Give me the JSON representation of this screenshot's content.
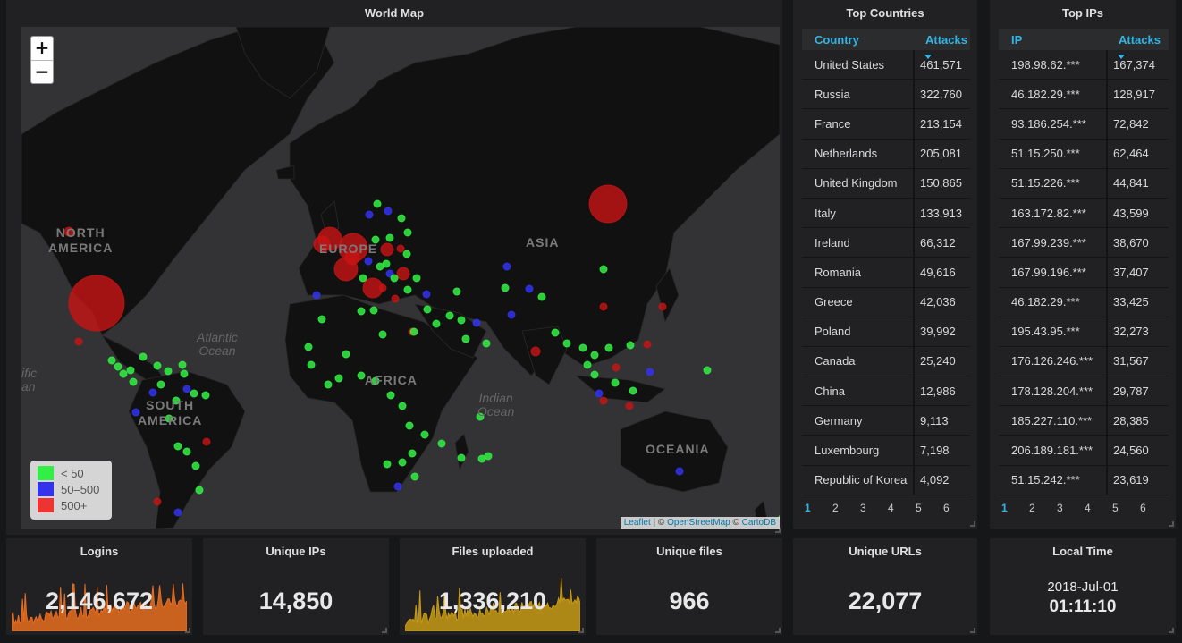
{
  "map_panel": {
    "title": "World Map",
    "zoom_in": "+",
    "zoom_out": "−",
    "labels": {
      "north_america": "NORTH\nAMERICA",
      "south_america": "SOUTH\nAMERICA",
      "europe": "EUROPE",
      "asia": "ASIA",
      "africa": "AFRICA",
      "oceania": "OCEANIA",
      "atlantic": "Atlantic\nOcean",
      "indian": "Indian\nOcean",
      "pacific_cut": "ific\nan"
    },
    "legend": [
      {
        "label": "< 50",
        "color": "#33ee44"
      },
      {
        "label": "50–500",
        "color": "#3333ee"
      },
      {
        "label": "500+",
        "color": "#ee3333"
      }
    ],
    "attribution": {
      "leaflet": "Leaflet",
      "sep1": " | © ",
      "osm": "OpenStreetMap",
      "sep2": " © ",
      "carto": "CartoDB"
    }
  },
  "countries_panel": {
    "title": "Top Countries",
    "col1": "Country",
    "col2": "Attacks",
    "rows": [
      {
        "name": "United States",
        "value": "461,571"
      },
      {
        "name": "Russia",
        "value": "322,760"
      },
      {
        "name": "France",
        "value": "213,154"
      },
      {
        "name": "Netherlands",
        "value": "205,081"
      },
      {
        "name": "United Kingdom",
        "value": "150,865"
      },
      {
        "name": "Italy",
        "value": "133,913"
      },
      {
        "name": "Ireland",
        "value": "66,312"
      },
      {
        "name": "Romania",
        "value": "49,616"
      },
      {
        "name": "Greece",
        "value": "42,036"
      },
      {
        "name": "Poland",
        "value": "39,992"
      },
      {
        "name": "Canada",
        "value": "25,240"
      },
      {
        "name": "China",
        "value": "12,986"
      },
      {
        "name": "Germany",
        "value": "9,113"
      },
      {
        "name": "Luxembourg",
        "value": "7,198"
      },
      {
        "name": "Republic of Korea",
        "value": "4,092"
      }
    ],
    "pages": [
      "1",
      "2",
      "3",
      "4",
      "5",
      "6"
    ]
  },
  "ips_panel": {
    "title": "Top IPs",
    "col1": "IP",
    "col2": "Attacks",
    "rows": [
      {
        "name": "198.98.62.***",
        "value": "167,374"
      },
      {
        "name": "46.182.29.***",
        "value": "128,917"
      },
      {
        "name": "93.186.254.***",
        "value": "72,842"
      },
      {
        "name": "51.15.250.***",
        "value": "62,464"
      },
      {
        "name": "51.15.226.***",
        "value": "44,841"
      },
      {
        "name": "163.172.82.***",
        "value": "43,599"
      },
      {
        "name": "167.99.239.***",
        "value": "38,670"
      },
      {
        "name": "167.99.196.***",
        "value": "37,407"
      },
      {
        "name": "46.182.29.***",
        "value": "33,425"
      },
      {
        "name": "195.43.95.***",
        "value": "32,273"
      },
      {
        "name": "176.126.246.***",
        "value": "31,567"
      },
      {
        "name": "178.128.204.***",
        "value": "29,787"
      },
      {
        "name": "185.227.110.***",
        "value": "28,385"
      },
      {
        "name": "206.189.181.***",
        "value": "24,560"
      },
      {
        "name": "51.15.242.***",
        "value": "23,619"
      }
    ],
    "pages": [
      "1",
      "2",
      "3",
      "4",
      "5",
      "6"
    ]
  },
  "stats": {
    "logins": {
      "title": "Logins",
      "value": "2,146,672",
      "color": "#e86d1f"
    },
    "unique_ips": {
      "title": "Unique IPs",
      "value": "14,850"
    },
    "files_uploaded": {
      "title": "Files uploaded",
      "value": "1,336,210",
      "color": "#c79a14"
    },
    "unique_files": {
      "title": "Unique files",
      "value": "966"
    },
    "unique_urls": {
      "title": "Unique URLs",
      "value": "22,077"
    },
    "local_time": {
      "title": "Local Time",
      "date": "2018-Jul-01",
      "time": "01:11:10"
    }
  }
}
